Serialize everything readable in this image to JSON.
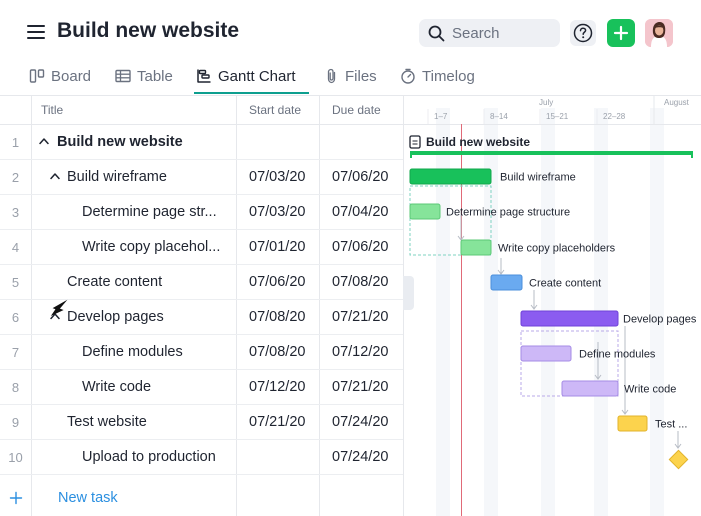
{
  "header": {
    "title": "Build new website",
    "search_placeholder": "Search",
    "help_icon": "question-circle-icon",
    "add_icon": "plus-icon",
    "menu_icon": "hamburger-menu-icon",
    "add_color": "#18c15b"
  },
  "tabs": [
    {
      "label": "Board",
      "icon": "board-icon",
      "active": false
    },
    {
      "label": "Table",
      "icon": "table-icon",
      "active": false
    },
    {
      "label": "Gantt Chart",
      "icon": "gantt-icon",
      "active": true
    },
    {
      "label": "Files",
      "icon": "paperclip-icon",
      "active": false
    },
    {
      "label": "Timelog",
      "icon": "stopwatch-icon",
      "active": false
    }
  ],
  "table": {
    "columns": {
      "title": "Title",
      "start": "Start date",
      "due": "Due date"
    },
    "rows": [
      {
        "num": "1",
        "title": "Build new website",
        "start": "",
        "due": "",
        "level": 0,
        "caret": true,
        "bold": true
      },
      {
        "num": "2",
        "title": "Build wireframe",
        "start": "07/03/20",
        "due": "07/06/20",
        "level": 1,
        "caret": true,
        "bold": false
      },
      {
        "num": "3",
        "title": "Determine page str...",
        "start": "07/03/20",
        "due": "07/04/20",
        "level": 2,
        "caret": false,
        "bold": false
      },
      {
        "num": "4",
        "title": "Write copy placehol...",
        "start": "07/01/20",
        "due": "07/06/20",
        "level": 2,
        "caret": false,
        "bold": false
      },
      {
        "num": "5",
        "title": "Create content",
        "start": "07/06/20",
        "due": "07/08/20",
        "level": 1,
        "caret": false,
        "bold": false
      },
      {
        "num": "6",
        "title": "Develop pages",
        "start": "07/08/20",
        "due": "07/21/20",
        "level": 1,
        "caret": true,
        "bold": false
      },
      {
        "num": "7",
        "title": "Define modules",
        "start": "07/08/20",
        "due": "07/12/20",
        "level": 2,
        "caret": false,
        "bold": false
      },
      {
        "num": "8",
        "title": "Write code",
        "start": "07/12/20",
        "due": "07/21/20",
        "level": 2,
        "caret": false,
        "bold": false
      },
      {
        "num": "9",
        "title": "Test website",
        "start": "07/21/20",
        "due": "07/24/20",
        "level": 1,
        "caret": false,
        "bold": false
      },
      {
        "num": "10",
        "title": "Upload to production",
        "start": "",
        "due": "07/24/20",
        "level": 2,
        "caret": false,
        "bold": false
      }
    ],
    "new_task_label": "New task"
  },
  "gantt": {
    "months": [
      "July",
      "August"
    ],
    "weeks": [
      "1–7",
      "8–14",
      "15–21",
      "22–28"
    ],
    "project_label": "Build new website",
    "bars": [
      {
        "label": "Build wireframe",
        "color": "#18c15b"
      },
      {
        "label": "Determine page structure",
        "color": "#86e49a"
      },
      {
        "label": "Write copy placeholders",
        "color": "#86e49a"
      },
      {
        "label": "Create content",
        "color": "#6aaaf0"
      },
      {
        "label": "Develop pages",
        "color": "#8b5cf0"
      },
      {
        "label": "Define modules",
        "color": "#cdb8f7"
      },
      {
        "label": "Write code",
        "color": "#cdb8f7"
      },
      {
        "label": "Test ...",
        "color": "#fcd34d"
      }
    ],
    "today_color": "#e06a78"
  }
}
